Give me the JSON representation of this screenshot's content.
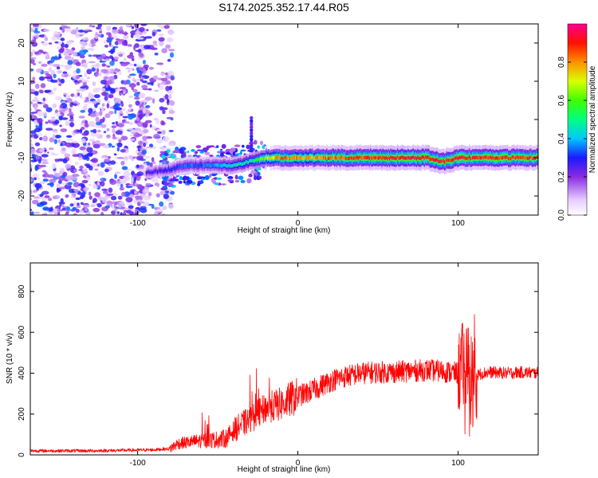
{
  "title": "S174.2025.352.17.44.R05",
  "chart_data": [
    {
      "type": "heatmap",
      "name": "spectrogram",
      "title": "S174.2025.352.17.44.R05",
      "xlabel": "Height of straight line (km)",
      "ylabel": "Frequency (Hz)",
      "xlim": [
        -167,
        150
      ],
      "ylim": [
        -25,
        25
      ],
      "xticks": [
        -100,
        0,
        100
      ],
      "yticks": [
        -20,
        -10,
        0,
        10,
        20
      ],
      "colorbar": {
        "label": "Normalized spectral amplitude",
        "range": [
          0,
          1
        ],
        "ticks": [
          "0.0",
          "0.2",
          "0.4",
          "0.6",
          "0.8"
        ],
        "colormap": "rainbow"
      },
      "signal_band": {
        "x": [
          -95,
          -80,
          -70,
          -60,
          -50,
          -40,
          -30,
          -20,
          -10,
          0,
          10,
          20,
          40,
          60,
          80,
          90,
          100,
          110,
          120,
          140,
          150
        ],
        "center_hz": [
          -14,
          -13,
          -12,
          -12,
          -12,
          -12,
          -11,
          -10,
          -10,
          -10,
          -10,
          -10,
          -10,
          -10,
          -10,
          -11,
          -10,
          -10,
          -10,
          -10,
          -10
        ],
        "peak_amplitude": [
          0.25,
          0.3,
          0.35,
          0.35,
          0.4,
          0.45,
          0.5,
          0.7,
          0.85,
          0.8,
          0.8,
          0.85,
          0.9,
          0.95,
          0.95,
          0.9,
          0.95,
          0.9,
          0.95,
          0.9,
          0.9
        ]
      }
    },
    {
      "type": "line",
      "name": "snr",
      "xlabel": "Height of straight line (km)",
      "ylabel": "SNR (10 * v/v)",
      "xlim": [
        -167,
        150
      ],
      "ylim": [
        0,
        940
      ],
      "xticks": [
        -100,
        0,
        100
      ],
      "yticks": [
        0,
        200,
        400,
        600,
        800
      ],
      "series": [
        {
          "name": "SNR",
          "color": "#ff0000",
          "x": [
            -167,
            -150,
            -130,
            -110,
            -90,
            -80,
            -75,
            -70,
            -60,
            -50,
            -45,
            -40,
            -35,
            -30,
            -25,
            -20,
            -15,
            -10,
            -5,
            0,
            5,
            10,
            15,
            20,
            25,
            30,
            40,
            50,
            60,
            70,
            80,
            90,
            95,
            100,
            102,
            104,
            106,
            108,
            110,
            112,
            115,
            120,
            130,
            140,
            150
          ],
          "y": [
            20,
            20,
            20,
            22,
            25,
            30,
            55,
            60,
            70,
            75,
            80,
            120,
            150,
            170,
            200,
            230,
            240,
            250,
            270,
            290,
            300,
            320,
            340,
            360,
            375,
            385,
            400,
            405,
            405,
            410,
            415,
            410,
            405,
            400,
            430,
            430,
            440,
            380,
            350,
            390,
            400,
            405,
            400,
            405,
            400
          ]
        }
      ]
    }
  ]
}
